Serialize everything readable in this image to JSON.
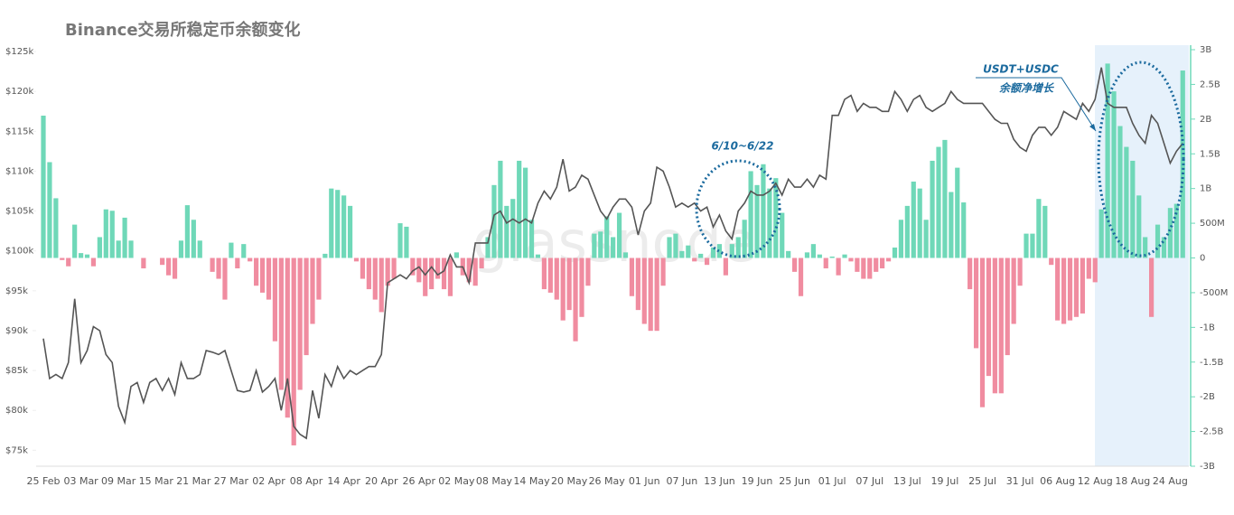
{
  "chart_data": {
    "type": "bar-line",
    "title": "Binance交易所稳定币余额变化",
    "watermark": "glassnode",
    "annotations": [
      "6/10~6/22",
      "USDT+USDC",
      "余额净增长"
    ],
    "categories": [
      "25 Feb",
      null,
      null,
      null,
      null,
      null,
      "03 Mar",
      null,
      null,
      null,
      null,
      null,
      "09 Mar",
      null,
      null,
      null,
      null,
      null,
      "15 Mar",
      null,
      null,
      null,
      null,
      null,
      "21 Mar",
      null,
      null,
      null,
      null,
      null,
      "27 Mar",
      null,
      null,
      null,
      null,
      null,
      "02 Apr",
      null,
      null,
      null,
      null,
      null,
      "08 Apr",
      null,
      null,
      null,
      null,
      null,
      "14 Apr",
      null,
      null,
      null,
      null,
      null,
      "20 Apr",
      null,
      null,
      null,
      null,
      null,
      "26 Apr",
      null,
      null,
      null,
      null,
      null,
      "02 May",
      null,
      null,
      null,
      null,
      null,
      "08 May",
      null,
      null,
      null,
      null,
      null,
      "14 May",
      null,
      null,
      null,
      null,
      null,
      "20 May",
      null,
      null,
      null,
      null,
      null,
      "26 May",
      null,
      null,
      null,
      null,
      null,
      "01 Jun",
      null,
      null,
      null,
      null,
      null,
      "07 Jun",
      null,
      null,
      null,
      null,
      null,
      "13 Jun",
      null,
      null,
      null,
      null,
      null,
      "19 Jun",
      null,
      null,
      null,
      null,
      null,
      "25 Jun",
      null,
      null,
      null,
      null,
      null,
      "01 Jul",
      null,
      null,
      null,
      null,
      null,
      "07 Jul",
      null,
      null,
      null,
      null,
      null,
      "13 Jul",
      null,
      null,
      null,
      null,
      null,
      "19 Jul",
      null,
      null,
      null,
      null,
      null,
      "25 Jul",
      null,
      null,
      null,
      null,
      null,
      "31 Jul",
      null,
      null,
      null,
      null,
      null,
      "06 Aug",
      null,
      null,
      null,
      null,
      null,
      "12 Aug",
      null,
      null,
      null,
      null,
      null,
      "18 Aug",
      null,
      null,
      null,
      null,
      null,
      "24 Aug",
      null,
      null
    ],
    "series": [
      {
        "type": "line",
        "axis": "y",
        "color": "#555555",
        "values": [
          89,
          84,
          84.5,
          84,
          86,
          94,
          86,
          87.5,
          90.5,
          90,
          87,
          86,
          80.5,
          78.5,
          83,
          83.5,
          81,
          83.5,
          84,
          82.5,
          84,
          82,
          86,
          84,
          84,
          84.5,
          87.5,
          87.3,
          87,
          87.5,
          85,
          82.5,
          82.3,
          82.5,
          85,
          82.3,
          83,
          84,
          80,
          84,
          78,
          77,
          76.5,
          82.5,
          79,
          84.5,
          83,
          85.5,
          84,
          85,
          84.5,
          85,
          85.5,
          85.5,
          87,
          96,
          96.5,
          97,
          96.5,
          97.5,
          98,
          97,
          98,
          97,
          97.5,
          99.5,
          98,
          98,
          96,
          101,
          101,
          101,
          104.5,
          105,
          103.5,
          104,
          103.5,
          104,
          103.5,
          106,
          107.5,
          106.5,
          108,
          111.5,
          107.5,
          108,
          109.5,
          109,
          107,
          105,
          104,
          105.5,
          106.5,
          106.5,
          105.5,
          102,
          105,
          106,
          110.5,
          110,
          108,
          105.5,
          106,
          105.5,
          106,
          105,
          105.5,
          103,
          104.5,
          102.5,
          101.5,
          105,
          106,
          107.5,
          107,
          107,
          107.5,
          108.5,
          107,
          109,
          108,
          108,
          109,
          108,
          109.5,
          109,
          117,
          117,
          119,
          119.5,
          117.5,
          118.5,
          118,
          118,
          117.5,
          117.5,
          120,
          119,
          117.5,
          119,
          119.5,
          118,
          117.5,
          118,
          118.5,
          120,
          119,
          118.5,
          118.5,
          118.5,
          118.5,
          117.5,
          116.5,
          116,
          116,
          114,
          113,
          112.5,
          114.5,
          115.5,
          115.5,
          114.5,
          115.5,
          117.5,
          117,
          116.5,
          118.5,
          117.5,
          119,
          123,
          118.5,
          118,
          118,
          118,
          116,
          114.5,
          113.5,
          117,
          116,
          113.5,
          111,
          112.5,
          113.5
        ]
      },
      {
        "type": "bar",
        "axis": "y2",
        "color": "#6fd8b8",
        "negative_color": "#f08ca0",
        "values": [
          2.05,
          1.38,
          0.86,
          -0.03,
          -0.12,
          0.48,
          0.07,
          0.05,
          -0.12,
          0.3,
          0.7,
          0.68,
          0.25,
          0.58,
          0.25,
          0,
          -0.15,
          0,
          0,
          -0.1,
          -0.25,
          -0.3,
          0.25,
          0.76,
          0.55,
          0.25,
          0,
          -0.2,
          -0.3,
          -0.6,
          0.22,
          -0.15,
          0.2,
          -0.05,
          -0.4,
          -0.5,
          -0.6,
          -1.2,
          -1.9,
          -2.3,
          -2.7,
          -1.9,
          -1.4,
          -0.95,
          -0.6,
          0.06,
          1,
          0.98,
          0.9,
          0.75,
          -0.05,
          -0.3,
          -0.45,
          -0.6,
          -0.78,
          -0.4,
          -0.3,
          0.5,
          0.45,
          -0.25,
          -0.35,
          -0.55,
          -0.45,
          -0.3,
          -0.45,
          -0.55,
          0.08,
          -0.25,
          -0.35,
          -0.4,
          -0.15,
          0.3,
          1.05,
          1.4,
          0.75,
          0.85,
          1.4,
          1.3,
          0.55,
          0.05,
          -0.45,
          -0.5,
          -0.6,
          -0.9,
          -0.75,
          -1.2,
          -0.85,
          -0.4,
          0.35,
          0.38,
          0.6,
          0.3,
          0.65,
          0.08,
          -0.55,
          -0.75,
          -0.95,
          -1.05,
          -1.05,
          -0.4,
          0.3,
          0.35,
          0.1,
          0.18,
          -0.05,
          0.06,
          -0.1,
          0.15,
          0.2,
          -0.25,
          0.2,
          0.3,
          0.55,
          1.25,
          1.05,
          1.35,
          1,
          1.15,
          0.65,
          0.1,
          -0.2,
          -0.55,
          0.08,
          0.2,
          0.05,
          -0.15,
          0.02,
          -0.25,
          0.05,
          -0.05,
          -0.2,
          -0.3,
          -0.3,
          -0.2,
          -0.15,
          -0.05,
          0.15,
          0.55,
          0.75,
          1.1,
          1,
          0.55,
          1.4,
          1.6,
          1.7,
          0.95,
          1.3,
          0.8,
          -0.45,
          -1.3,
          -2.15,
          -1.7,
          -1.95,
          -1.95,
          -1.4,
          -0.95,
          -0.4,
          0.35,
          0.35,
          0.85,
          0.75,
          -0.1,
          -0.9,
          -0.95,
          -0.9,
          -0.85,
          -0.8,
          -0.3,
          -0.35,
          0.7,
          2.8,
          2.4,
          1.9,
          1.6,
          1.4,
          0.9,
          0.3,
          -0.85,
          0.48,
          0.3,
          0.72,
          0.78,
          2.7
        ]
      }
    ],
    "ylim": [
      73,
      125.8
    ],
    "yticks": [
      {
        "value": 75,
        "label": "$75k"
      },
      {
        "value": 80,
        "label": "$80k"
      },
      {
        "value": 85,
        "label": "$85k"
      },
      {
        "value": 90,
        "label": "$90k"
      },
      {
        "value": 95,
        "label": "$95k"
      },
      {
        "value": 100,
        "label": "$100k"
      },
      {
        "value": 105,
        "label": "$105k"
      },
      {
        "value": 110,
        "label": "$110k"
      },
      {
        "value": 115,
        "label": "$115k"
      },
      {
        "value": 120,
        "label": "$120k"
      },
      {
        "value": 125,
        "label": "$125k"
      }
    ],
    "y2lim": [
      -3,
      3
    ],
    "y2ticks": [
      {
        "value": -3,
        "label": "-3B"
      },
      {
        "value": -2.5,
        "label": "-2.5B"
      },
      {
        "value": -2,
        "label": "-2B"
      },
      {
        "value": -1.5,
        "label": "-1.5B"
      },
      {
        "value": -1,
        "label": "-1B"
      },
      {
        "value": -0.5,
        "label": "-500M"
      },
      0,
      {
        "value": 0.5,
        "label": "500M"
      },
      {
        "value": 1,
        "label": "1B"
      },
      {
        "value": 1.5,
        "label": "1.5B"
      },
      {
        "value": 2,
        "label": "2B"
      },
      {
        "value": 2.5,
        "label": "2.5B"
      },
      {
        "value": 3,
        "label": "3B"
      }
    ]
  }
}
